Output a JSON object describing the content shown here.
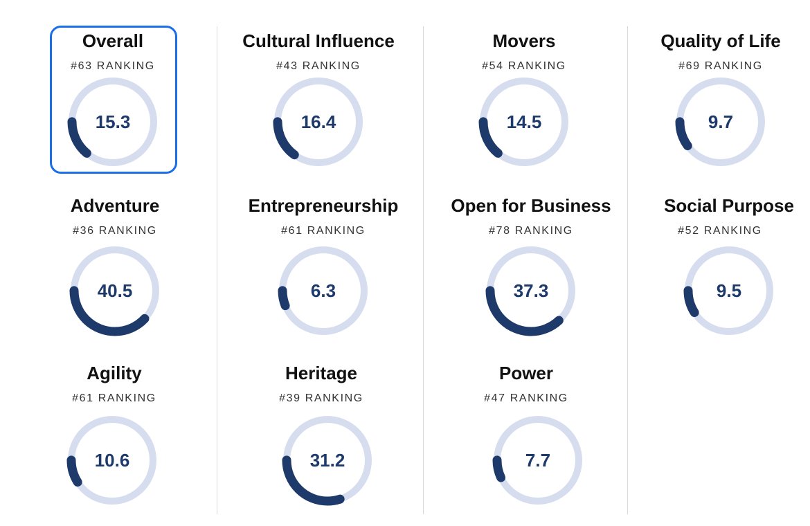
{
  "colors": {
    "ring_track": "#d6ddef",
    "ring_fill": "#1e3a6b",
    "value_text": "#1e3a6b",
    "selected_border": "#1a6ee8",
    "divider": "#d9d9d9"
  },
  "metrics": [
    {
      "key": "overall",
      "title": "Overall",
      "rank": "#63 RANKING",
      "value": "15.3",
      "fill_fraction": 0.14,
      "selected": true
    },
    {
      "key": "cultural-influence",
      "title": "Cultural Influence",
      "rank": "#43 RANKING",
      "value": "16.4",
      "fill_fraction": 0.15
    },
    {
      "key": "movers",
      "title": "Movers",
      "rank": "#54 RANKING",
      "value": "14.5",
      "fill_fraction": 0.14
    },
    {
      "key": "quality-of-life",
      "title": "Quality of Life",
      "rank": "#69 RANKING",
      "value": "9.7",
      "fill_fraction": 0.1
    },
    {
      "key": "adventure",
      "title": "Adventure",
      "rank": "#36 RANKING",
      "value": "40.5",
      "fill_fraction": 0.38
    },
    {
      "key": "entrepreneurship",
      "title": "Entrepreneurship",
      "rank": "#61 RANKING",
      "value": "6.3",
      "fill_fraction": 0.06
    },
    {
      "key": "open-for-business",
      "title": "Open for Business",
      "rank": "#78 RANKING",
      "value": "37.3",
      "fill_fraction": 0.37
    },
    {
      "key": "social-purpose",
      "title": "Social Purpose",
      "rank": "#52 RANKING",
      "value": "9.5",
      "fill_fraction": 0.09
    },
    {
      "key": "agility",
      "title": "Agility",
      "rank": "#61 RANKING",
      "value": "10.6",
      "fill_fraction": 0.09
    },
    {
      "key": "heritage",
      "title": "Heritage",
      "rank": "#39 RANKING",
      "value": "31.2",
      "fill_fraction": 0.3
    },
    {
      "key": "power",
      "title": "Power",
      "rank": "#47 RANKING",
      "value": "7.7",
      "fill_fraction": 0.07
    }
  ]
}
